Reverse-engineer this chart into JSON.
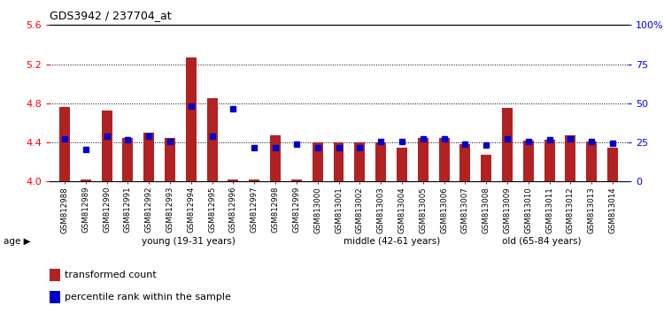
{
  "title": "GDS3942 / 237704_at",
  "categories": [
    "GSM812988",
    "GSM812989",
    "GSM812990",
    "GSM812991",
    "GSM812992",
    "GSM812993",
    "GSM812994",
    "GSM812995",
    "GSM812996",
    "GSM812997",
    "GSM812998",
    "GSM812999",
    "GSM813000",
    "GSM813001",
    "GSM813002",
    "GSM813003",
    "GSM813004",
    "GSM813005",
    "GSM813006",
    "GSM813007",
    "GSM813008",
    "GSM813009",
    "GSM813010",
    "GSM813011",
    "GSM813012",
    "GSM813013",
    "GSM813014"
  ],
  "bar_values": [
    4.76,
    4.02,
    4.73,
    4.45,
    4.5,
    4.45,
    5.27,
    4.85,
    4.02,
    4.02,
    4.47,
    4.02,
    4.4,
    4.4,
    4.4,
    4.4,
    4.35,
    4.45,
    4.45,
    4.38,
    4.27,
    4.75,
    4.42,
    4.43,
    4.47,
    4.41,
    4.35
  ],
  "percentile_values": [
    4.44,
    4.33,
    4.46,
    4.43,
    4.46,
    4.41,
    4.77,
    4.46,
    4.74,
    4.35,
    4.35,
    4.38,
    4.35,
    4.35,
    4.35,
    4.41,
    4.41,
    4.44,
    4.44,
    4.38,
    4.37,
    4.44,
    4.41,
    4.43,
    4.44,
    4.41,
    4.39
  ],
  "bar_color": "#B22222",
  "dot_color": "#0000CC",
  "ylim": [
    4.0,
    5.6
  ],
  "yticks": [
    4.0,
    4.4,
    4.8,
    5.2,
    5.6
  ],
  "y2lim": [
    0,
    100
  ],
  "y2ticks": [
    0,
    25,
    50,
    75,
    100
  ],
  "y2ticklabels": [
    "0",
    "25",
    "50",
    "75",
    "100%"
  ],
  "grid_values": [
    4.4,
    4.8,
    5.2
  ],
  "young_count": 13,
  "middle_count": 6,
  "old_count": 8,
  "young_label": "young (19-31 years)",
  "middle_label": "middle (42-61 years)",
  "old_label": "old (65-84 years)",
  "age_label": "age",
  "legend_bar": "transformed count",
  "legend_dot": "percentile rank within the sample",
  "young_color": "#CCFFCC",
  "middle_color": "#AADDAA",
  "old_color": "#66BB66"
}
